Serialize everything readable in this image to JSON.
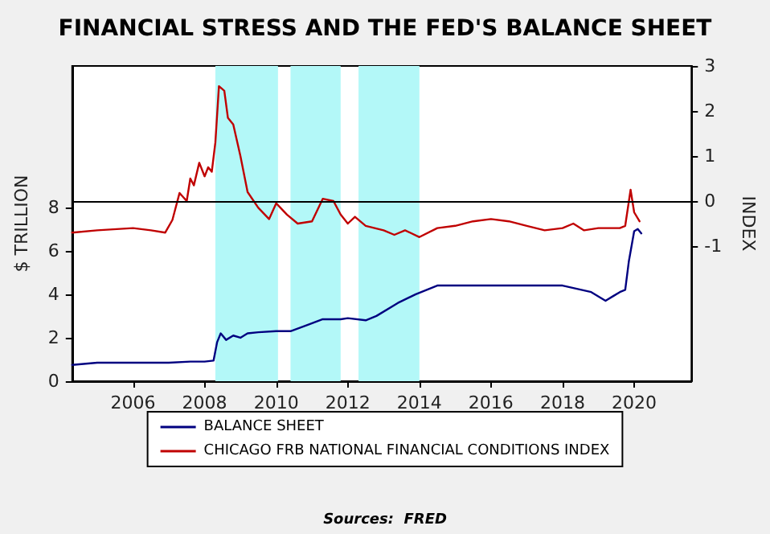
{
  "chart_data": {
    "type": "line",
    "title": "FINANCIAL STRESS AND THE FED'S BALANCE SHEET",
    "ylabel": "$ TRILLION",
    "y2label": "INDEX",
    "annotations": [
      "Sources:  FRED"
    ],
    "xlim": [
      2004.3,
      2021.6
    ],
    "xticks": [
      2006,
      2008,
      2010,
      2012,
      2014,
      2016,
      2018,
      2020
    ],
    "ylim": [
      0,
      14.5
    ],
    "yticks": [
      0,
      2,
      4,
      6,
      8
    ],
    "y2lim": [
      -4,
      3
    ],
    "y2ticks": [
      -1,
      0,
      1,
      2,
      3
    ],
    "series": [
      {
        "name": "BALANCE SHEET",
        "color": "#000080",
        "x": [
          2004.3,
          2005,
          2006,
          2007,
          2007.6,
          2008,
          2008.25,
          2008.35,
          2008.45,
          2008.6,
          2008.8,
          2009,
          2009.2,
          2009.5,
          2010,
          2010.4,
          2010.9,
          2011.3,
          2011.8,
          2012,
          2012.5,
          2012.8,
          2013.4,
          2013.9,
          2014.5,
          2015,
          2017,
          2018,
          2018.8,
          2019.2,
          2019.6,
          2019.75,
          2019.85,
          2020,
          2020.1,
          2020.2
        ],
        "values": [
          0.75,
          0.85,
          0.85,
          0.85,
          0.9,
          0.9,
          0.95,
          1.8,
          2.2,
          1.9,
          2.1,
          2.0,
          2.2,
          2.25,
          2.3,
          2.3,
          2.6,
          2.85,
          2.85,
          2.9,
          2.8,
          3.0,
          3.6,
          4.0,
          4.4,
          4.4,
          4.4,
          4.4,
          4.1,
          3.7,
          4.1,
          4.2,
          5.5,
          6.9,
          7.0,
          6.8
        ]
      },
      {
        "name": "CHICAGO FRB NATIONAL FINANCIAL CONDITIONS INDEX",
        "color": "#c00000",
        "axis": "y2",
        "x": [
          2004.3,
          2005,
          2006,
          2006.5,
          2006.9,
          2007.1,
          2007.3,
          2007.5,
          2007.6,
          2007.7,
          2007.85,
          2008,
          2008.1,
          2008.2,
          2008.3,
          2008.4,
          2008.55,
          2008.65,
          2008.8,
          2009,
          2009.2,
          2009.5,
          2009.8,
          2010,
          2010.3,
          2010.6,
          2011,
          2011.3,
          2011.6,
          2011.8,
          2012,
          2012.2,
          2012.5,
          2013,
          2013.3,
          2013.6,
          2014,
          2014.5,
          2015,
          2015.5,
          2016,
          2016.5,
          2017,
          2017.5,
          2018,
          2018.3,
          2018.6,
          2019,
          2019.6,
          2019.75,
          2019.9,
          2020,
          2020.15
        ],
        "values": [
          -0.7,
          -0.65,
          -0.6,
          -0.65,
          -0.7,
          -0.42,
          0.18,
          0.0,
          0.5,
          0.35,
          0.85,
          0.55,
          0.75,
          0.65,
          1.3,
          2.55,
          2.45,
          1.85,
          1.7,
          1.0,
          0.2,
          -0.15,
          -0.4,
          -0.05,
          -0.3,
          -0.5,
          -0.45,
          0.05,
          0.0,
          -0.3,
          -0.5,
          -0.35,
          -0.55,
          -0.65,
          -0.75,
          -0.65,
          -0.8,
          -0.6,
          -0.55,
          -0.45,
          -0.4,
          -0.45,
          -0.55,
          -0.65,
          -0.6,
          -0.5,
          -0.65,
          -0.6,
          -0.6,
          -0.55,
          0.25,
          -0.25,
          -0.45
        ]
      }
    ],
    "ref_lines": [
      {
        "axis": "y2",
        "value": 0,
        "color": "#000000"
      }
    ],
    "bands": [
      {
        "axis": "x",
        "from": 2008.3,
        "to": 2010.05,
        "color": "#b3f8f8"
      },
      {
        "axis": "x",
        "from": 2010.4,
        "to": 2011.8,
        "color": "#b3f8f8"
      },
      {
        "axis": "x",
        "from": 2012.3,
        "to": 2014.0,
        "color": "#b3f8f8"
      }
    ],
    "legend": "bottom",
    "grid": false,
    "marker": "none",
    "line_style": "solid"
  }
}
